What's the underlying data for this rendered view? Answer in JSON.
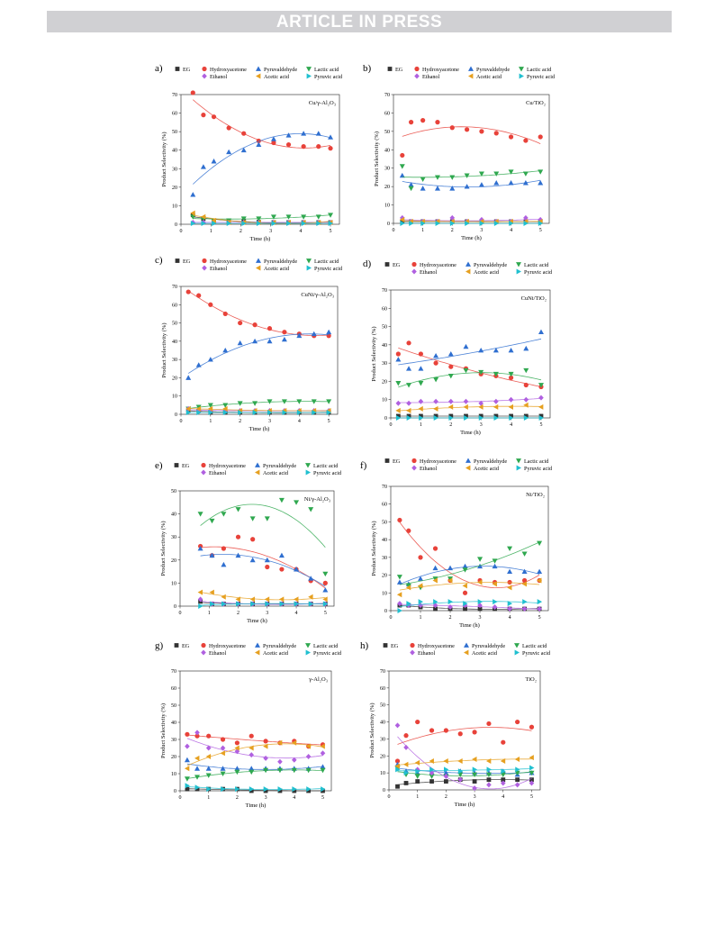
{
  "header": {
    "banner_text": "ARTICLE IN PRESS"
  },
  "legend": {
    "row1": [
      {
        "name": "EG",
        "color": "#333333",
        "marker": "square"
      },
      {
        "name": "Hydroxyacetone",
        "color": "#e8423a",
        "marker": "circle"
      },
      {
        "name": "Pyruvaldehyde",
        "color": "#2f6fd0",
        "marker": "triangle-up"
      },
      {
        "name": "Lactic acid",
        "color": "#2fa84f",
        "marker": "triangle-down"
      }
    ],
    "row2": [
      {
        "name": "Ethanol",
        "color": "#b060e0",
        "marker": "diamond"
      },
      {
        "name": "Acetic acid",
        "color": "#e6a020",
        "marker": "triangle-left"
      },
      {
        "name": "Pyruvic acid",
        "color": "#20c0d0",
        "marker": "triangle-right"
      }
    ]
  },
  "chart_data": [
    {
      "letter": "a)",
      "catalyst_label": "Cu/γ-Al₂O₃",
      "type": "scatter",
      "xlabel": "Time (h)",
      "ylabel": "Product Selectivity (%)",
      "xlim": [
        0,
        5.3
      ],
      "ylim": [
        0,
        70
      ],
      "x": [
        0.4,
        0.75,
        1.1,
        1.6,
        2.1,
        2.6,
        3.1,
        3.6,
        4.1,
        4.6,
        5.0
      ],
      "series": [
        {
          "name": "EG",
          "values": [
            5,
            3,
            2,
            1.5,
            1.5,
            1.2,
            1,
            1,
            1,
            1,
            1
          ]
        },
        {
          "name": "Hydroxyacetone",
          "values": [
            71,
            59,
            58,
            52,
            49,
            45,
            44,
            43,
            42,
            42,
            41
          ]
        },
        {
          "name": "Pyruvaldehyde",
          "values": [
            16,
            31,
            34,
            39,
            40,
            43,
            46,
            48,
            49,
            49,
            47
          ]
        },
        {
          "name": "Lactic acid",
          "values": [
            4,
            3,
            2,
            2,
            3,
            3,
            4,
            4,
            4,
            4,
            5
          ]
        },
        {
          "name": "Ethanol",
          "values": [
            1,
            1,
            1,
            1,
            1,
            1,
            1,
            1,
            1,
            1,
            1
          ]
        },
        {
          "name": "Acetic acid",
          "values": [
            6,
            4,
            2,
            1,
            1,
            1,
            1,
            1,
            1,
            1,
            1
          ]
        },
        {
          "name": "Pyruvic acid",
          "values": [
            0.5,
            0.5,
            0.5,
            0.5,
            0.5,
            0.5,
            0.5,
            0.5,
            0.5,
            0.5,
            0.5
          ]
        }
      ]
    },
    {
      "letter": "b)",
      "catalyst_label": "Cu/TiO₂",
      "type": "scatter",
      "xlabel": "Time (h)",
      "ylabel": "Product Selectivity (%)",
      "xlim": [
        0,
        5.3
      ],
      "ylim": [
        0,
        70
      ],
      "x": [
        0.3,
        0.6,
        1.0,
        1.5,
        2.0,
        2.5,
        3.0,
        3.5,
        4.0,
        4.5,
        5.0
      ],
      "series": [
        {
          "name": "EG",
          "values": [
            1,
            1,
            1,
            1,
            1,
            1,
            1,
            1,
            1,
            1,
            1
          ]
        },
        {
          "name": "Hydroxyacetone",
          "values": [
            37,
            55,
            56,
            55,
            52,
            51,
            50,
            49,
            47,
            45,
            47
          ]
        },
        {
          "name": "Pyruvaldehyde",
          "values": [
            26,
            21,
            19,
            19,
            19,
            20,
            21,
            22,
            22,
            22,
            22
          ]
        },
        {
          "name": "Lactic acid",
          "values": [
            31,
            19,
            24,
            25,
            25,
            26,
            27,
            27,
            28,
            27,
            28
          ]
        },
        {
          "name": "Ethanol",
          "values": [
            3,
            1,
            1,
            1,
            3,
            1,
            2,
            1,
            1,
            3,
            2
          ]
        },
        {
          "name": "Acetic acid",
          "values": [
            2,
            1,
            1,
            1,
            1,
            1,
            1,
            1,
            1,
            1,
            1
          ]
        },
        {
          "name": "Pyruvic acid",
          "values": [
            0,
            0,
            0,
            0,
            0,
            0,
            0,
            0,
            0,
            0,
            0
          ]
        }
      ]
    },
    {
      "letter": "c)",
      "catalyst_label": "CuNi/γ-Al₂O₃",
      "type": "scatter",
      "xlabel": "Time (h)",
      "ylabel": "Product Selectivity (%)",
      "xlim": [
        0,
        5.3
      ],
      "ylim": [
        0,
        70
      ],
      "x": [
        0.25,
        0.6,
        1.0,
        1.5,
        2.0,
        2.5,
        3.0,
        3.5,
        4.0,
        4.5,
        5.0
      ],
      "series": [
        {
          "name": "EG",
          "values": [
            2,
            2,
            1,
            1,
            1,
            1,
            1,
            1,
            1,
            1,
            1
          ]
        },
        {
          "name": "Hydroxyacetone",
          "values": [
            67,
            65,
            60,
            55,
            50,
            49,
            47,
            45,
            44,
            43,
            43
          ]
        },
        {
          "name": "Pyruvaldehyde",
          "values": [
            20,
            27,
            30,
            35,
            39,
            40,
            40,
            41,
            43,
            44,
            45
          ]
        },
        {
          "name": "Lactic acid",
          "values": [
            3,
            4,
            5,
            5,
            6,
            6,
            7,
            7,
            7,
            7,
            7
          ]
        },
        {
          "name": "Ethanol",
          "values": [
            3,
            2,
            2,
            2,
            2,
            2,
            2,
            2,
            2,
            2,
            2
          ]
        },
        {
          "name": "Acetic acid",
          "values": [
            3,
            3,
            3,
            3,
            2,
            2,
            2,
            2,
            2,
            2,
            2
          ]
        },
        {
          "name": "Pyruvic acid",
          "values": [
            1,
            1,
            1,
            1,
            1,
            1,
            1,
            1,
            1,
            1,
            1
          ]
        }
      ]
    },
    {
      "letter": "d)",
      "catalyst_label": "CuNi/TiO₂",
      "type": "scatter",
      "xlabel": "Time (h)",
      "ylabel": "Product Selectivity (%)",
      "xlim": [
        0,
        5.3
      ],
      "ylim": [
        0,
        70
      ],
      "x": [
        0.25,
        0.6,
        1.0,
        1.5,
        2.0,
        2.5,
        3.0,
        3.5,
        4.0,
        4.5,
        5.0
      ],
      "series": [
        {
          "name": "EG",
          "values": [
            1,
            1,
            1,
            1,
            1,
            1,
            1,
            1,
            1,
            1,
            1
          ]
        },
        {
          "name": "Hydroxyacetone",
          "values": [
            35,
            41,
            35,
            30,
            28,
            27,
            24,
            23,
            22,
            18,
            17
          ]
        },
        {
          "name": "Pyruvaldehyde",
          "values": [
            32,
            27,
            27,
            34,
            35,
            39,
            37,
            37,
            37,
            38,
            47
          ]
        },
        {
          "name": "Lactic acid",
          "values": [
            19,
            18,
            19,
            21,
            23,
            26,
            25,
            24,
            24,
            26,
            18
          ]
        },
        {
          "name": "Ethanol",
          "values": [
            8,
            8,
            9,
            9,
            9,
            9,
            8,
            9,
            10,
            10,
            11
          ]
        },
        {
          "name": "Acetic acid",
          "values": [
            4,
            4,
            5,
            5,
            6,
            6,
            6,
            6,
            6,
            7,
            6
          ]
        },
        {
          "name": "Pyruvic acid",
          "values": [
            0,
            0,
            0,
            0,
            0,
            0,
            0,
            0,
            0,
            0,
            0
          ]
        }
      ]
    },
    {
      "letter": "e)",
      "catalyst_label": "Ni/γ-Al₂O₃",
      "type": "scatter",
      "xlabel": "Time (h)",
      "ylabel": "Product Selectivity (%)",
      "xlim": [
        0,
        5.3
      ],
      "ylim": [
        0,
        50
      ],
      "x": [
        0.7,
        1.1,
        1.5,
        2.0,
        2.5,
        3.0,
        3.5,
        4.0,
        4.5,
        5.0
      ],
      "series": [
        {
          "name": "EG",
          "values": [
            2,
            1,
            1,
            1,
            1,
            1,
            1,
            1,
            1,
            1
          ]
        },
        {
          "name": "Hydroxyacetone",
          "values": [
            26,
            22,
            25,
            30,
            29,
            17,
            16,
            16,
            11,
            10
          ]
        },
        {
          "name": "Pyruvaldehyde",
          "values": [
            25,
            22,
            18,
            22,
            20,
            20,
            22,
            16,
            12,
            7
          ]
        },
        {
          "name": "Lactic acid",
          "values": [
            40,
            37,
            40,
            42,
            38,
            38,
            46,
            45,
            42,
            14
          ]
        },
        {
          "name": "Ethanol",
          "values": [
            3,
            1,
            1,
            1,
            1,
            1,
            1,
            1,
            1,
            1
          ]
        },
        {
          "name": "Acetic acid",
          "values": [
            6,
            6,
            4,
            3,
            3,
            3,
            3,
            3,
            4,
            3
          ]
        },
        {
          "name": "Pyruvic acid",
          "values": [
            0,
            1,
            1,
            1,
            1,
            1,
            1,
            1,
            1,
            1
          ]
        }
      ]
    },
    {
      "letter": "f)",
      "catalyst_label": "Ni/TiO₂",
      "type": "scatter",
      "xlabel": "Time (h)",
      "ylabel": "Product Selectivity (%)",
      "xlim": [
        0,
        5.3
      ],
      "ylim": [
        0,
        70
      ],
      "x": [
        0.3,
        0.6,
        1.0,
        1.5,
        2.0,
        2.5,
        3.0,
        3.5,
        4.0,
        4.5,
        5.0
      ],
      "series": [
        {
          "name": "EG",
          "values": [
            3,
            3,
            2,
            1,
            1,
            1,
            1,
            1,
            1,
            1,
            1
          ]
        },
        {
          "name": "Hydroxyacetone",
          "values": [
            51,
            45,
            30,
            35,
            17,
            10,
            17,
            16,
            16,
            17,
            17
          ]
        },
        {
          "name": "Pyruvaldehyde",
          "values": [
            16,
            15,
            18,
            24,
            24,
            25,
            25,
            25,
            22,
            22,
            22
          ]
        },
        {
          "name": "Lactic acid",
          "values": [
            19,
            14,
            13,
            18,
            18,
            23,
            29,
            28,
            35,
            32,
            38
          ]
        },
        {
          "name": "Ethanol",
          "values": [
            4,
            3,
            3,
            3,
            2,
            3,
            3,
            2,
            1,
            1,
            1
          ]
        },
        {
          "name": "Acetic acid",
          "values": [
            9,
            13,
            14,
            17,
            17,
            14,
            16,
            15,
            13,
            15,
            17
          ]
        },
        {
          "name": "Pyruvic acid",
          "values": [
            0,
            4,
            5,
            5,
            5,
            4,
            5,
            5,
            4,
            5,
            5
          ]
        }
      ]
    },
    {
      "letter": "g)",
      "catalyst_label": "γ-Al₂O₃",
      "type": "scatter",
      "xlabel": "Time (h)",
      "ylabel": "Product Selectivity (%)",
      "xlim": [
        0,
        5.3
      ],
      "ylim": [
        0,
        70
      ],
      "x": [
        0.25,
        0.6,
        1.0,
        1.5,
        2.0,
        2.5,
        3.0,
        3.5,
        4.0,
        4.5,
        5.0
      ],
      "series": [
        {
          "name": "EG",
          "values": [
            1,
            1,
            1,
            1,
            1,
            0,
            0,
            0,
            0,
            0,
            0
          ]
        },
        {
          "name": "Hydroxyacetone",
          "values": [
            33,
            32,
            32,
            30,
            28,
            32,
            29,
            28,
            29,
            26,
            27
          ]
        },
        {
          "name": "Pyruvaldehyde",
          "values": [
            18,
            13,
            13,
            13,
            13,
            13,
            13,
            13,
            13,
            13,
            14
          ]
        },
        {
          "name": "Lactic acid",
          "values": [
            7,
            8,
            9,
            10,
            11,
            11,
            12,
            12,
            12,
            12,
            12
          ]
        },
        {
          "name": "Ethanol",
          "values": [
            26,
            34,
            25,
            25,
            23,
            21,
            19,
            17,
            18,
            20,
            22
          ]
        },
        {
          "name": "Acetic acid",
          "values": [
            13,
            19,
            20,
            22,
            25,
            25,
            26,
            28,
            28,
            26,
            26
          ]
        },
        {
          "name": "Pyruvic acid",
          "values": [
            3,
            2,
            1,
            1,
            1,
            1,
            1,
            1,
            1,
            1,
            1
          ]
        }
      ]
    },
    {
      "letter": "h)",
      "catalyst_label": "TiO₂",
      "type": "scatter",
      "xlabel": "Time (h)",
      "ylabel": "Product Selectivity (%)",
      "xlim": [
        0,
        5.3
      ],
      "ylim": [
        0,
        70
      ],
      "x": [
        0.3,
        0.6,
        1.0,
        1.5,
        2.0,
        2.5,
        3.0,
        3.5,
        4.0,
        4.5,
        5.0
      ],
      "series": [
        {
          "name": "EG",
          "values": [
            2,
            4,
            5,
            5,
            5,
            6,
            5,
            6,
            6,
            6,
            6
          ]
        },
        {
          "name": "Hydroxyacetone",
          "values": [
            17,
            32,
            40,
            35,
            35,
            33,
            34,
            39,
            28,
            40,
            37
          ]
        },
        {
          "name": "Pyruvaldehyde",
          "values": [
            15,
            11,
            10,
            10,
            10,
            11,
            10,
            10,
            11,
            9,
            10
          ]
        },
        {
          "name": "Lactic acid",
          "values": [
            13,
            9,
            8,
            8,
            8,
            9,
            9,
            9,
            9,
            10,
            10
          ]
        },
        {
          "name": "Ethanol",
          "values": [
            38,
            25,
            12,
            10,
            8,
            6,
            1,
            3,
            4,
            3,
            4
          ]
        },
        {
          "name": "Acetic acid",
          "values": [
            14,
            15,
            16,
            17,
            17,
            17,
            18,
            17,
            17,
            18,
            19
          ]
        },
        {
          "name": "Pyruvic acid",
          "values": [
            12,
            10,
            11,
            12,
            12,
            11,
            12,
            12,
            11,
            12,
            13
          ]
        }
      ]
    }
  ]
}
